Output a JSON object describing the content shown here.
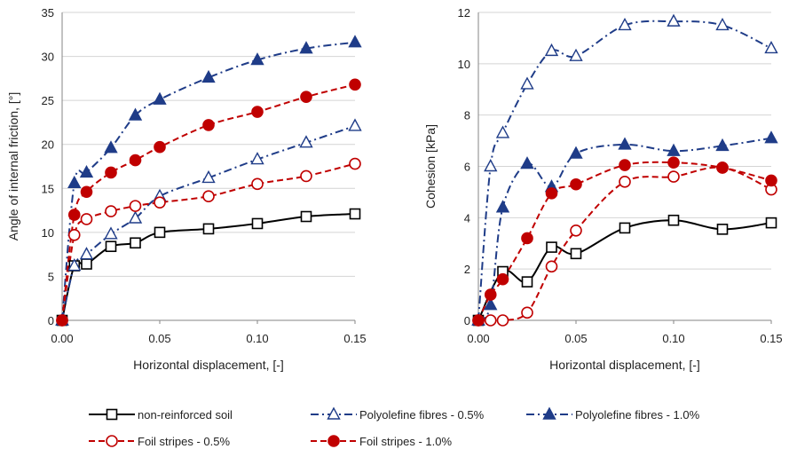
{
  "chart_data": [
    {
      "type": "line",
      "title": "",
      "xlabel": "Horizontal displacement, [-]",
      "ylabel": "Angle of internal friction, [°]",
      "xlim": [
        0,
        0.15
      ],
      "ylim": [
        0,
        35
      ],
      "xticks": [
        "0.00",
        "0.05",
        "0.10",
        "0.15"
      ],
      "yticks": [
        "0",
        "5",
        "10",
        "15",
        "20",
        "25",
        "30",
        "35"
      ],
      "grid": true,
      "series": [
        {
          "name": "non-reinforced soil",
          "color": "#000000",
          "dash": "solid",
          "marker": "square-open",
          "x": [
            0,
            0.00625,
            0.0125,
            0.025,
            0.0375,
            0.05,
            0.075,
            0.1,
            0.125,
            0.15
          ],
          "y": [
            0,
            6.2,
            6.4,
            8.4,
            8.8,
            10.0,
            10.4,
            11.0,
            11.8,
            12.1
          ]
        },
        {
          "name": "Polyolefine fibres - 0.5%",
          "color": "#1f3c88",
          "dash": "dashdot",
          "marker": "triangle-open",
          "x": [
            0,
            0.00625,
            0.0125,
            0.025,
            0.0375,
            0.05,
            0.075,
            0.1,
            0.125,
            0.15
          ],
          "y": [
            0,
            6.2,
            7.5,
            9.8,
            11.6,
            14.1,
            16.2,
            18.3,
            20.2,
            22.1
          ]
        },
        {
          "name": "Polyolefine fibres - 1.0%",
          "color": "#1f3c88",
          "dash": "dashdot",
          "marker": "triangle-filled",
          "x": [
            0,
            0.00625,
            0.0125,
            0.025,
            0.0375,
            0.05,
            0.075,
            0.1,
            0.125,
            0.15
          ],
          "y": [
            0,
            15.6,
            16.8,
            19.6,
            23.3,
            25.1,
            27.6,
            29.6,
            30.9,
            31.6
          ]
        },
        {
          "name": "Foil stripes - 0.5%",
          "color": "#c00000",
          "dash": "dashed",
          "marker": "circle-open",
          "x": [
            0,
            0.00625,
            0.0125,
            0.025,
            0.0375,
            0.05,
            0.075,
            0.1,
            0.125,
            0.15
          ],
          "y": [
            0,
            9.7,
            11.5,
            12.4,
            13.0,
            13.4,
            14.1,
            15.5,
            16.4,
            17.8
          ]
        },
        {
          "name": "Foil stripes - 1.0%",
          "color": "#c00000",
          "dash": "dashed",
          "marker": "circle-filled",
          "x": [
            0,
            0.00625,
            0.0125,
            0.025,
            0.0375,
            0.05,
            0.075,
            0.1,
            0.125,
            0.15
          ],
          "y": [
            0,
            12.0,
            14.6,
            16.8,
            18.2,
            19.7,
            22.2,
            23.7,
            25.4,
            26.8
          ]
        }
      ]
    },
    {
      "type": "line",
      "title": "",
      "xlabel": "Horizontal displacement, [-]",
      "ylabel": "Cohesion [kPa]",
      "xlim": [
        0,
        0.15
      ],
      "ylim": [
        0,
        12
      ],
      "xticks": [
        "0.00",
        "0.05",
        "0.10",
        "0.15"
      ],
      "yticks": [
        "0",
        "2",
        "4",
        "6",
        "8",
        "10",
        "12"
      ],
      "grid": true,
      "series": [
        {
          "name": "non-reinforced soil",
          "color": "#000000",
          "dash": "solid",
          "marker": "square-open",
          "x": [
            0,
            0.0125,
            0.025,
            0.0375,
            0.05,
            0.075,
            0.1,
            0.125,
            0.15
          ],
          "y": [
            0,
            1.9,
            1.5,
            2.85,
            2.6,
            3.6,
            3.9,
            3.55,
            3.8
          ]
        },
        {
          "name": "Polyolefine fibres - 0.5%",
          "color": "#1f3c88",
          "dash": "dashdot",
          "marker": "triangle-open",
          "x": [
            0,
            0.00625,
            0.0125,
            0.025,
            0.0375,
            0.05,
            0.075,
            0.1,
            0.125,
            0.15
          ],
          "y": [
            0,
            6.0,
            7.3,
            9.2,
            10.5,
            10.3,
            11.5,
            11.65,
            11.5,
            10.6
          ]
        },
        {
          "name": "Polyolefine fibres - 1.0%",
          "color": "#1f3c88",
          "dash": "dashdot",
          "marker": "triangle-filled",
          "x": [
            0,
            0.00625,
            0.0125,
            0.025,
            0.0375,
            0.05,
            0.075,
            0.1,
            0.125,
            0.15
          ],
          "y": [
            0,
            0.6,
            4.4,
            6.1,
            5.2,
            6.5,
            6.85,
            6.6,
            6.8,
            7.1
          ]
        },
        {
          "name": "Foil stripes - 0.5%",
          "color": "#c00000",
          "dash": "dashed",
          "marker": "circle-open",
          "x": [
            0,
            0.00625,
            0.0125,
            0.025,
            0.0375,
            0.05,
            0.075,
            0.1,
            0.125,
            0.15
          ],
          "y": [
            0,
            0,
            0,
            0.3,
            2.1,
            3.5,
            5.4,
            5.6,
            5.95,
            5.1
          ]
        },
        {
          "name": "Foil stripes - 1.0%",
          "color": "#c00000",
          "dash": "dashed",
          "marker": "circle-filled",
          "x": [
            0,
            0.00625,
            0.0125,
            0.025,
            0.0375,
            0.05,
            0.075,
            0.1,
            0.125,
            0.15
          ],
          "y": [
            0,
            1.0,
            1.6,
            3.2,
            4.95,
            5.3,
            6.05,
            6.15,
            5.95,
            5.45
          ]
        }
      ]
    }
  ],
  "legend": {
    "placement": "bottom",
    "items": [
      {
        "label": "non-reinforced soil",
        "color": "#000000",
        "dash": "solid",
        "marker": "square-open"
      },
      {
        "label": "Polyolefine fibres - 0.5%",
        "color": "#1f3c88",
        "dash": "dashdot",
        "marker": "triangle-open"
      },
      {
        "label": "Polyolefine fibres - 1.0%",
        "color": "#1f3c88",
        "dash": "dashdot",
        "marker": "triangle-filled"
      },
      {
        "label": "Foil stripes - 0.5%",
        "color": "#c00000",
        "dash": "dashed",
        "marker": "circle-open"
      },
      {
        "label": "Foil stripes - 1.0%",
        "color": "#c00000",
        "dash": "dashed",
        "marker": "circle-filled"
      }
    ]
  }
}
